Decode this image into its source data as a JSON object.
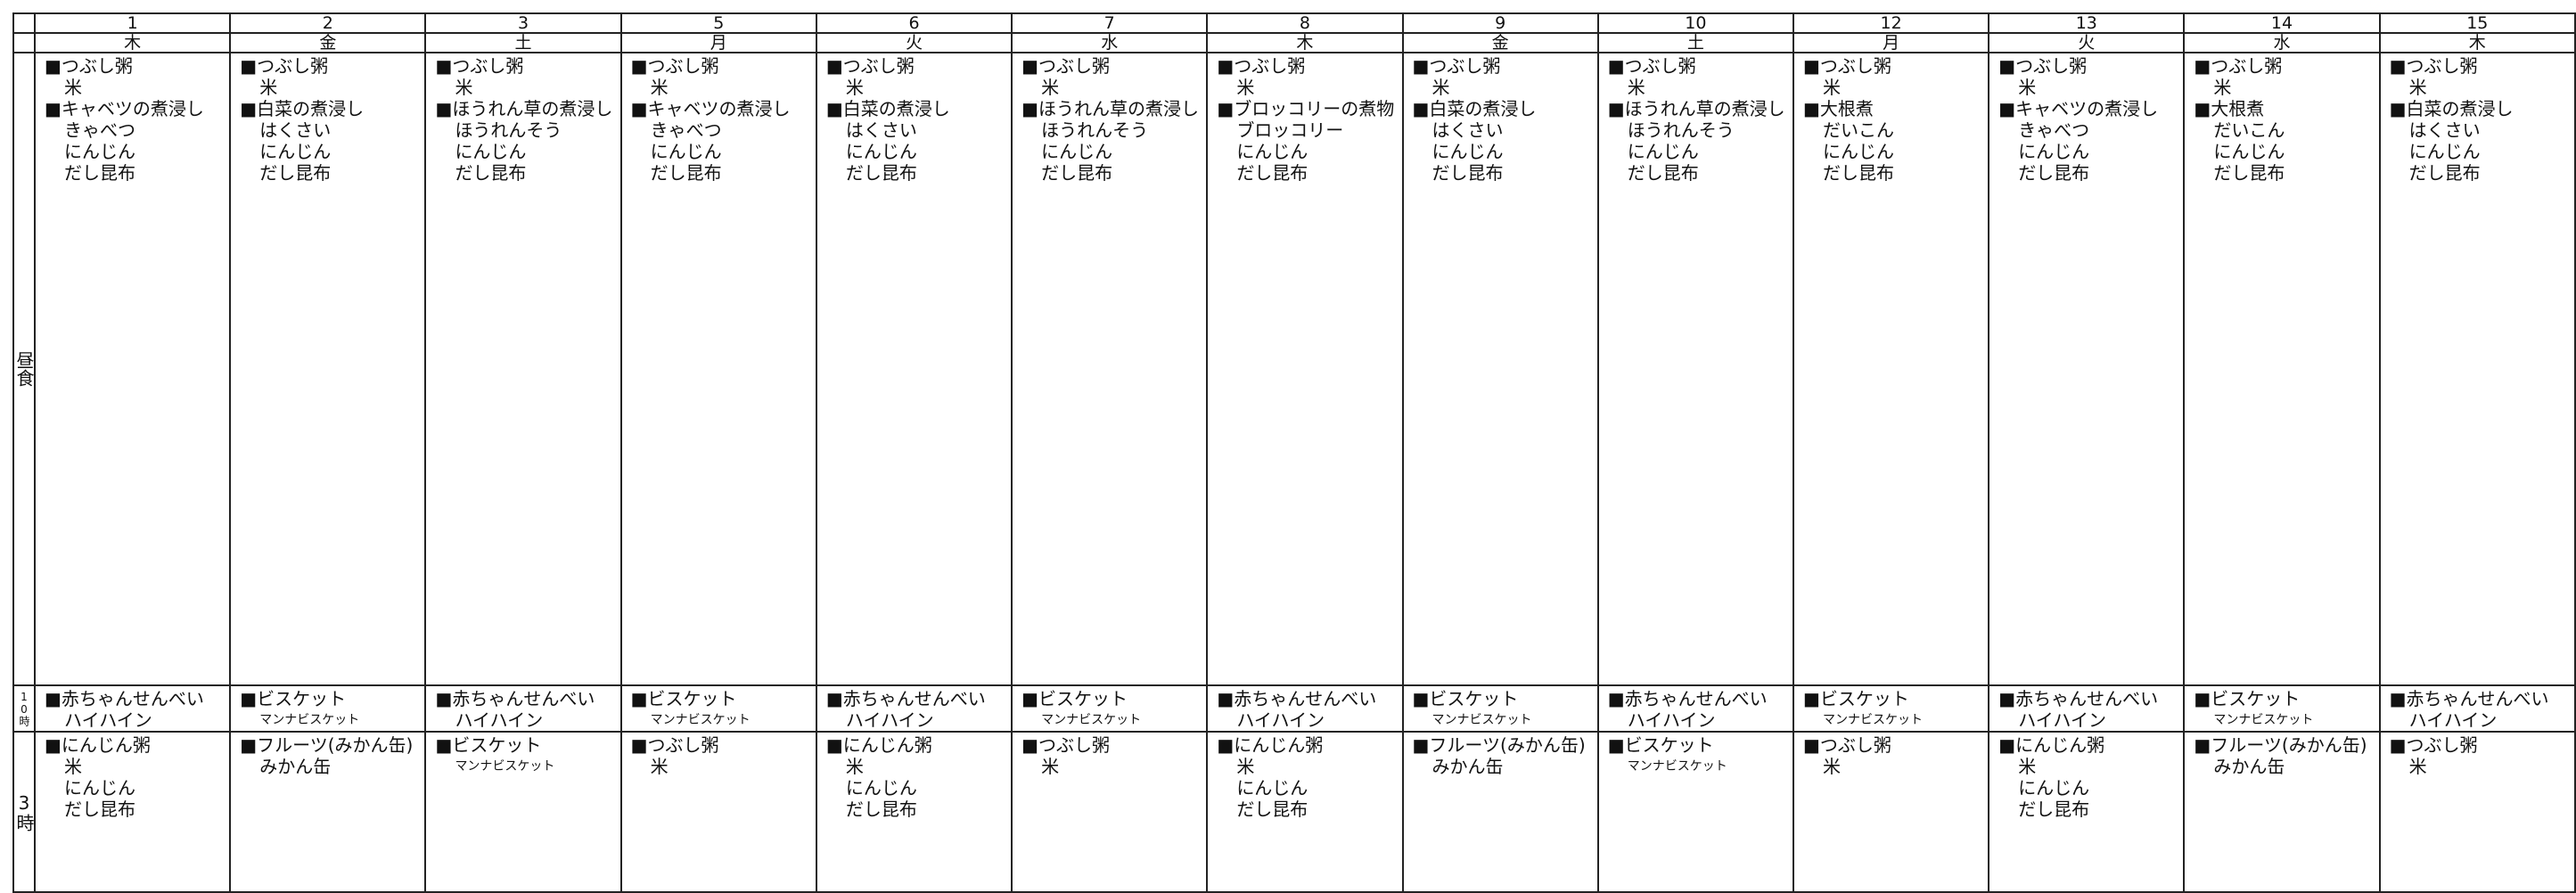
{
  "row_labels": {
    "lunch": "昼食",
    "snack_am": "10時",
    "snack_pm": "3時"
  },
  "days": [
    {
      "day": "1",
      "weekday": "木",
      "lunch": [
        "■つぶし粥",
        "米",
        "■キャベツの煮浸し",
        "きゃべつ",
        "にんじん",
        "だし昆布"
      ],
      "snack_am": [
        "■赤ちゃんせんべい",
        "ハイハイン"
      ],
      "snack_pm": [
        "■にんじん粥",
        "米",
        "にんじん",
        "だし昆布"
      ]
    },
    {
      "day": "2",
      "weekday": "金",
      "lunch": [
        "■つぶし粥",
        "米",
        "■白菜の煮浸し",
        "はくさい",
        "にんじん",
        "だし昆布"
      ],
      "snack_am": [
        "■ビスケット",
        "マンナビスケット"
      ],
      "snack_pm": [
        "■フルーツ(みかん缶)",
        "みかん缶"
      ]
    },
    {
      "day": "3",
      "weekday": "土",
      "lunch": [
        "■つぶし粥",
        "米",
        "■ほうれん草の煮浸し",
        "ほうれんそう",
        "にんじん",
        "だし昆布"
      ],
      "snack_am": [
        "■赤ちゃんせんべい",
        "ハイハイン"
      ],
      "snack_pm": [
        "■ビスケット",
        "マンナビスケット"
      ]
    },
    {
      "day": "5",
      "weekday": "月",
      "lunch": [
        "■つぶし粥",
        "米",
        "■キャベツの煮浸し",
        "きゃべつ",
        "にんじん",
        "だし昆布"
      ],
      "snack_am": [
        "■ビスケット",
        "マンナビスケット"
      ],
      "snack_pm": [
        "■つぶし粥",
        "米"
      ]
    },
    {
      "day": "6",
      "weekday": "火",
      "lunch": [
        "■つぶし粥",
        "米",
        "■白菜の煮浸し",
        "はくさい",
        "にんじん",
        "だし昆布"
      ],
      "snack_am": [
        "■赤ちゃんせんべい",
        "ハイハイン"
      ],
      "snack_pm": [
        "■にんじん粥",
        "米",
        "にんじん",
        "だし昆布"
      ]
    },
    {
      "day": "7",
      "weekday": "水",
      "lunch": [
        "■つぶし粥",
        "米",
        "■ほうれん草の煮浸し",
        "ほうれんそう",
        "にんじん",
        "だし昆布"
      ],
      "snack_am": [
        "■ビスケット",
        "マンナビスケット"
      ],
      "snack_pm": [
        "■つぶし粥",
        "米"
      ]
    },
    {
      "day": "8",
      "weekday": "木",
      "lunch": [
        "■つぶし粥",
        "米",
        "■ブロッコリーの煮物",
        "ブロッコリー",
        "にんじん",
        "だし昆布"
      ],
      "snack_am": [
        "■赤ちゃんせんべい",
        "ハイハイン"
      ],
      "snack_pm": [
        "■にんじん粥",
        "米",
        "にんじん",
        "だし昆布"
      ]
    },
    {
      "day": "9",
      "weekday": "金",
      "lunch": [
        "■つぶし粥",
        "米",
        "■白菜の煮浸し",
        "はくさい",
        "にんじん",
        "だし昆布"
      ],
      "snack_am": [
        "■ビスケット",
        "マンナビスケット"
      ],
      "snack_pm": [
        "■フルーツ(みかん缶)",
        "みかん缶"
      ]
    },
    {
      "day": "10",
      "weekday": "土",
      "lunch": [
        "■つぶし粥",
        "米",
        "■ほうれん草の煮浸し",
        "ほうれんそう",
        "にんじん",
        "だし昆布"
      ],
      "snack_am": [
        "■赤ちゃんせんべい",
        "ハイハイン"
      ],
      "snack_pm": [
        "■ビスケット",
        "マンナビスケット"
      ]
    },
    {
      "day": "12",
      "weekday": "月",
      "lunch": [
        "■つぶし粥",
        "米",
        "■大根煮",
        "だいこん",
        "にんじん",
        "だし昆布"
      ],
      "snack_am": [
        "■ビスケット",
        "マンナビスケット"
      ],
      "snack_pm": [
        "■つぶし粥",
        "米"
      ]
    },
    {
      "day": "13",
      "weekday": "火",
      "lunch": [
        "■つぶし粥",
        "米",
        "■キャベツの煮浸し",
        "きゃべつ",
        "にんじん",
        "だし昆布"
      ],
      "snack_am": [
        "■赤ちゃんせんべい",
        "ハイハイン"
      ],
      "snack_pm": [
        "■にんじん粥",
        "米",
        "にんじん",
        "だし昆布"
      ]
    },
    {
      "day": "14",
      "weekday": "水",
      "lunch": [
        "■つぶし粥",
        "米",
        "■大根煮",
        "だいこん",
        "にんじん",
        "だし昆布"
      ],
      "snack_am": [
        "■ビスケット",
        "マンナビスケット"
      ],
      "snack_pm": [
        "■フルーツ(みかん缶)",
        "みかん缶"
      ]
    },
    {
      "day": "15",
      "weekday": "木",
      "lunch": [
        "■つぶし粥",
        "米",
        "■白菜の煮浸し",
        "はくさい",
        "にんじん",
        "だし昆布"
      ],
      "snack_am": [
        "■赤ちゃんせんべい",
        "ハイハイン"
      ],
      "snack_pm": [
        "■つぶし粥",
        "米"
      ]
    }
  ]
}
